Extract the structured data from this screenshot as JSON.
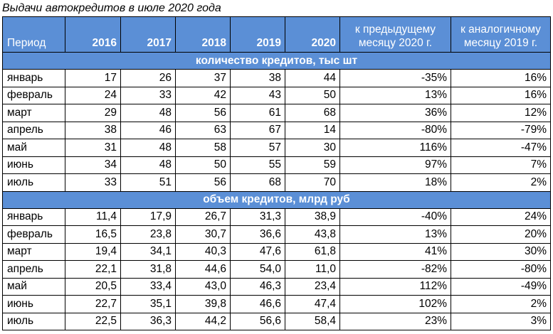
{
  "title": "Выдачи автокредитов в июле 2020 года",
  "header": {
    "period": "Период",
    "years": [
      "2016",
      "2017",
      "2018",
      "2019",
      "2020"
    ],
    "prev_month": "к предыдущему месяцу 2020 г.",
    "same_month": "к аналогичному месяцу 2019 г."
  },
  "sections": [
    {
      "title": "количество кредитов, тыс шт",
      "rows": [
        {
          "month": "январь",
          "values": [
            "17",
            "26",
            "37",
            "38",
            "44"
          ],
          "prev": "-35%",
          "yoy": "16%"
        },
        {
          "month": "февраль",
          "values": [
            "24",
            "33",
            "42",
            "43",
            "50"
          ],
          "prev": "13%",
          "yoy": "16%"
        },
        {
          "month": "март",
          "values": [
            "29",
            "48",
            "56",
            "61",
            "68"
          ],
          "prev": "36%",
          "yoy": "12%"
        },
        {
          "month": "апрель",
          "values": [
            "38",
            "46",
            "63",
            "67",
            "14"
          ],
          "prev": "-80%",
          "yoy": "-79%"
        },
        {
          "month": "май",
          "values": [
            "31",
            "48",
            "58",
            "57",
            "30"
          ],
          "prev": "116%",
          "yoy": "-47%"
        },
        {
          "month": "июнь",
          "values": [
            "34",
            "48",
            "50",
            "55",
            "59"
          ],
          "prev": "97%",
          "yoy": "7%"
        },
        {
          "month": "июль",
          "values": [
            "33",
            "51",
            "56",
            "68",
            "70"
          ],
          "prev": "18%",
          "yoy": "2%"
        }
      ]
    },
    {
      "title": "объем кредитов, млрд руб",
      "rows": [
        {
          "month": "январь",
          "values": [
            "11,4",
            "17,9",
            "26,7",
            "31,3",
            "38,9"
          ],
          "prev": "-40%",
          "yoy": "24%"
        },
        {
          "month": "февраль",
          "values": [
            "16,5",
            "23,8",
            "30,7",
            "36,6",
            "43,8"
          ],
          "prev": "13%",
          "yoy": "20%"
        },
        {
          "month": "март",
          "values": [
            "19,4",
            "34,1",
            "40,3",
            "47,6",
            "61,8"
          ],
          "prev": "41%",
          "yoy": "30%"
        },
        {
          "month": "апрель",
          "values": [
            "22,1",
            "31,8",
            "44,6",
            "54,0",
            "11,0"
          ],
          "prev": "-82%",
          "yoy": "-80%"
        },
        {
          "month": "май",
          "values": [
            "20,5",
            "33,4",
            "43,0",
            "46,3",
            "23,4"
          ],
          "prev": "112%",
          "yoy": "-49%"
        },
        {
          "month": "июнь",
          "values": [
            "22,7",
            "35,1",
            "39,8",
            "46,6",
            "47,4"
          ],
          "prev": "102%",
          "yoy": "2%"
        },
        {
          "month": "июль",
          "values": [
            "22,5",
            "36,3",
            "44,2",
            "56,6",
            "58,4"
          ],
          "prev": "23%",
          "yoy": "3%"
        }
      ]
    }
  ]
}
